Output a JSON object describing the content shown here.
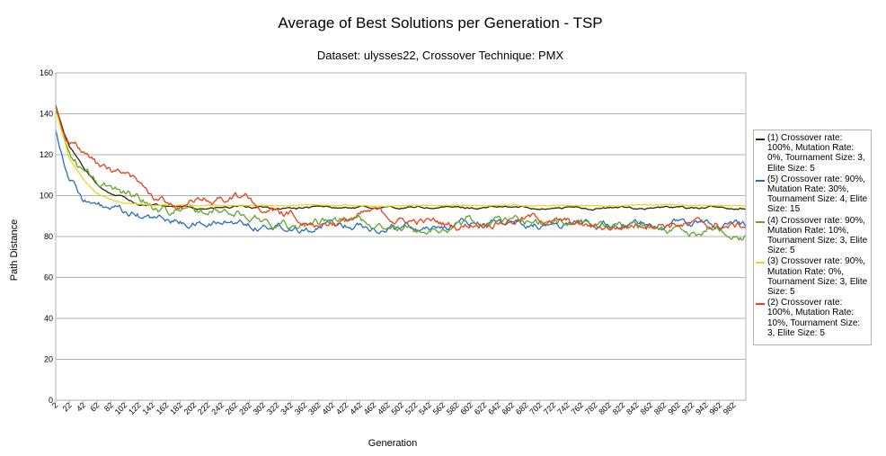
{
  "chart_data": {
    "type": "line",
    "title": "Average of Best Solutions per Generation - TSP",
    "subtitle": "Dataset: ulysses22, Crossover Technique: PMX",
    "xlabel": "Generation",
    "ylabel": "Path Distance",
    "ylim": [
      0,
      160
    ],
    "xlim": [
      2,
      1000
    ],
    "y_ticks": [
      0,
      20,
      40,
      60,
      80,
      100,
      120,
      140,
      160
    ],
    "x_ticks": [
      2,
      22,
      42,
      62,
      82,
      102,
      122,
      142,
      162,
      182,
      202,
      222,
      242,
      262,
      282,
      302,
      322,
      342,
      362,
      382,
      402,
      422,
      442,
      462,
      482,
      502,
      522,
      542,
      562,
      582,
      602,
      622,
      642,
      662,
      682,
      702,
      722,
      742,
      762,
      782,
      802,
      822,
      842,
      862,
      882,
      902,
      922,
      942,
      962,
      982
    ],
    "grid": "horizontal",
    "legend_position": "right",
    "series": [
      {
        "name": "(1) Crossover rate: 100%, Mutation Rate: 0%, Tournament Size: 3, Elite Size: 5",
        "color": "#2b2b00",
        "points": [
          [
            2,
            144
          ],
          [
            12,
            133
          ],
          [
            22,
            124
          ],
          [
            42,
            113
          ],
          [
            62,
            105
          ],
          [
            82,
            101
          ],
          [
            102,
            99
          ],
          [
            122,
            96
          ],
          [
            142,
            95
          ],
          [
            162,
            94.5
          ],
          [
            182,
            94
          ],
          [
            1000,
            94
          ]
        ],
        "noise": 0.8
      },
      {
        "name": "(5) Crossover rate: 90%, Mutation Rate: 30%, Tournament Size: 4, Elite Size: 15",
        "color": "#2a6ebb",
        "points": [
          [
            2,
            133
          ],
          [
            12,
            120
          ],
          [
            22,
            110
          ],
          [
            42,
            99
          ],
          [
            62,
            94
          ],
          [
            82,
            92
          ],
          [
            102,
            90
          ],
          [
            122,
            89
          ],
          [
            142,
            88
          ],
          [
            162,
            87.5
          ],
          [
            182,
            87
          ],
          [
            222,
            86.5
          ],
          [
            262,
            87
          ],
          [
            302,
            86
          ],
          [
            342,
            86
          ],
          [
            402,
            86
          ],
          [
            462,
            85.5
          ],
          [
            522,
            85
          ],
          [
            582,
            86
          ],
          [
            642,
            86
          ],
          [
            702,
            86.5
          ],
          [
            762,
            86.5
          ],
          [
            822,
            86.5
          ],
          [
            882,
            86
          ],
          [
            942,
            86
          ],
          [
            1000,
            85.5
          ]
        ],
        "noise": 2.6
      },
      {
        "name": "(4) Crossover rate: 90%, Mutation Rate: 10%, Tournament Size: 3, Elite Size: 5",
        "color": "#5fa62c",
        "points": [
          [
            2,
            143
          ],
          [
            12,
            130
          ],
          [
            22,
            121
          ],
          [
            42,
            112
          ],
          [
            62,
            106
          ],
          [
            82,
            103
          ],
          [
            102,
            102
          ],
          [
            122,
            100
          ],
          [
            142,
            96
          ],
          [
            162,
            94
          ],
          [
            182,
            93
          ],
          [
            222,
            92
          ],
          [
            262,
            91
          ],
          [
            302,
            88
          ],
          [
            342,
            85
          ],
          [
            402,
            88
          ],
          [
            442,
            88
          ],
          [
            482,
            83
          ],
          [
            522,
            83
          ],
          [
            562,
            84
          ],
          [
            602,
            86
          ],
          [
            642,
            89
          ],
          [
            682,
            88
          ],
          [
            722,
            87
          ],
          [
            762,
            88
          ],
          [
            802,
            86
          ],
          [
            842,
            85
          ],
          [
            882,
            84
          ],
          [
            922,
            82
          ],
          [
            962,
            84
          ],
          [
            1000,
            82
          ]
        ],
        "noise": 3.0
      },
      {
        "name": "(3) Crossover rate: 90%, Mutation Rate: 0%, Tournament Size: 3, Elite Size: 5",
        "color": "#f5d31c",
        "points": [
          [
            2,
            142
          ],
          [
            12,
            130
          ],
          [
            22,
            118
          ],
          [
            42,
            108
          ],
          [
            62,
            101
          ],
          [
            82,
            98
          ],
          [
            102,
            96.5
          ],
          [
            122,
            96
          ],
          [
            142,
            95.5
          ],
          [
            182,
            95.2
          ],
          [
            1000,
            95.2
          ]
        ],
        "noise": 0.3
      },
      {
        "name": "(2) Crossover rate: 100%, Mutation Rate: 10%, Tournament Size: 3, Elite Size: 5",
        "color": "#e8411a",
        "points": [
          [
            2,
            142
          ],
          [
            12,
            135
          ],
          [
            22,
            128
          ],
          [
            42,
            120
          ],
          [
            62,
            114
          ],
          [
            82,
            111
          ],
          [
            102,
            110
          ],
          [
            122,
            105
          ],
          [
            142,
            99
          ],
          [
            162,
            97
          ],
          [
            182,
            96
          ],
          [
            222,
            97
          ],
          [
            262,
            99
          ],
          [
            282,
            98
          ],
          [
            302,
            93
          ],
          [
            342,
            90
          ],
          [
            382,
            88
          ],
          [
            422,
            88
          ],
          [
            462,
            91
          ],
          [
            502,
            88
          ],
          [
            542,
            87
          ],
          [
            582,
            85
          ],
          [
            622,
            88
          ],
          [
            662,
            89
          ],
          [
            702,
            89
          ],
          [
            742,
            86
          ],
          [
            782,
            84
          ],
          [
            822,
            85
          ],
          [
            862,
            88
          ],
          [
            902,
            87
          ],
          [
            942,
            85
          ],
          [
            982,
            85
          ],
          [
            1000,
            85
          ]
        ],
        "noise": 2.6
      }
    ]
  }
}
